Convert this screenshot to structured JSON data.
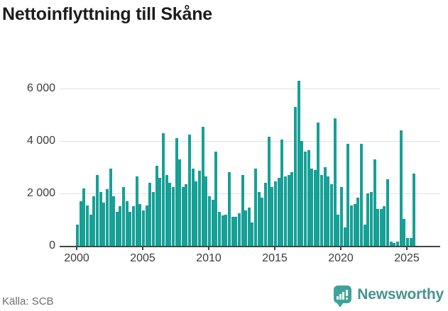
{
  "title": "Nettoinflyttning till Skåne",
  "footer": {
    "source": "Källa: SCB",
    "brand": "Newsworthy"
  },
  "colors": {
    "bar": "#17a096",
    "grid": "#e2e2e2",
    "axis": "#404848",
    "title_text": "#1d1d1d",
    "tick_text": "#3c3c3c",
    "source_text": "#6e6e6e",
    "brand_teal": "#3fa39c",
    "brand_text": "#47948e"
  },
  "chart_data": {
    "type": "bar",
    "title": "Nettoinflyttning till Skåne",
    "x_frequency": "quarterly",
    "x_start": {
      "year": 2000,
      "quarter": 1
    },
    "x_end": {
      "year": 2025,
      "quarter": 3
    },
    "x_tick_labels": [
      "2000",
      "2005",
      "2010",
      "2015",
      "2020",
      "2025"
    ],
    "y_tick_labels": [
      "0",
      "2 000",
      "4 000",
      "6 000"
    ],
    "y_tick_values": [
      0,
      2000,
      4000,
      6000
    ],
    "gridline_values": [
      2000,
      4000,
      6000
    ],
    "ylim": [
      0,
      6400
    ],
    "legend": "none",
    "values": [
      800,
      1700,
      2200,
      1550,
      1200,
      1900,
      2700,
      2050,
      1650,
      2150,
      2950,
      1900,
      1300,
      1500,
      2250,
      1700,
      1300,
      1500,
      2650,
      1600,
      1350,
      1550,
      2400,
      2050,
      3050,
      2600,
      4300,
      2700,
      2400,
      2250,
      4100,
      3300,
      2250,
      2350,
      4250,
      2950,
      2450,
      2850,
      4550,
      2650,
      1900,
      1750,
      3600,
      1300,
      1150,
      1200,
      2800,
      1100,
      1100,
      1250,
      2700,
      1350,
      1450,
      900,
      2950,
      2050,
      1850,
      2400,
      4150,
      2250,
      2450,
      2600,
      4050,
      2650,
      2700,
      2800,
      5300,
      6300,
      4000,
      3600,
      3650,
      2950,
      2900,
      4700,
      2700,
      3000,
      2650,
      2350,
      4850,
      1200,
      2250,
      700,
      3880,
      1550,
      1600,
      1850,
      3880,
      800,
      2000,
      2050,
      3300,
      1400,
      1400,
      1500,
      2550,
      150,
      100,
      150,
      4400,
      1040,
      300,
      300,
      2750
    ]
  }
}
